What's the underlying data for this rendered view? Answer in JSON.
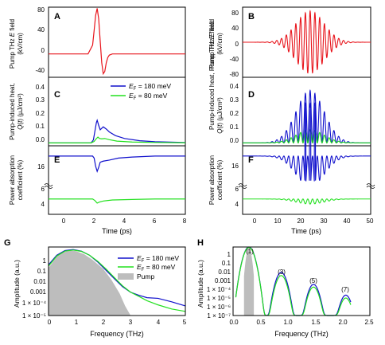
{
  "figure": {
    "pump_label": "Pump THz E field (kV/cm)",
    "heat_label": "Pump-induced heat, Q(t) (µJ/cm²)",
    "abs_label": "Power absorption coefficient (%)",
    "time_label": "Time (ps)",
    "freq_label": "Frequency (THz)",
    "amp_label": "Amplitude (a.u.)",
    "legend_180": "E_F = 180 meV",
    "legend_80": "E_F = 80 meV",
    "legend_pump": "Pump"
  },
  "colors": {
    "pump": "#e8141b",
    "ef180": "#1010cc",
    "ef80": "#22e01e",
    "pump_fill": "#bdbdbd"
  },
  "chart_data": [
    {
      "panel": "A",
      "type": "line",
      "ylabel": "Pump THz E field (kV/cm)",
      "xlim": [
        -1,
        8
      ],
      "ylim": [
        -40,
        80
      ],
      "x_ticks": [],
      "y_ticks": [
        "80",
        "40",
        "0",
        "-40"
      ],
      "series": [
        {
          "color": "#e8141b",
          "x": [
            -1,
            1.6,
            1.9,
            2.0,
            2.1,
            2.2,
            2.3,
            2.4,
            2.5,
            2.6,
            2.7,
            2.8,
            2.9,
            3.0,
            3.2,
            3.6,
            8
          ],
          "y": [
            0,
            0,
            15,
            40,
            66,
            78,
            60,
            22,
            -15,
            -34,
            -30,
            -15,
            -6,
            -2,
            0,
            0,
            0
          ]
        }
      ]
    },
    {
      "panel": "B",
      "type": "line",
      "ylabel": "Pump THz E field (kV/cm)",
      "xlim": [
        -5,
        50
      ],
      "ylim": [
        -90,
        90
      ],
      "x_ticks": [],
      "y_ticks": [
        "80",
        "40",
        "0",
        "-40",
        "-80"
      ],
      "series": [
        {
          "color": "#e8141b",
          "model": "gaussian-burst",
          "amplitude": 80,
          "center": 24,
          "width": 8.5,
          "period": 2.05,
          "x_range": [
            -5,
            50
          ]
        }
      ]
    },
    {
      "panel": "C",
      "type": "line",
      "ylabel": "Pump-induced heat, Q(t) (µJ/cm²)",
      "xlim": [
        -1,
        8
      ],
      "ylim": [
        -0.02,
        0.45
      ],
      "x_ticks": [],
      "y_ticks": [
        "0.4",
        "0.3",
        "0.2",
        "0.1",
        "0.0"
      ],
      "series": [
        {
          "name": "E_F = 180 meV",
          "color": "#1010cc",
          "x": [
            -1,
            1.8,
            1.95,
            2.05,
            2.15,
            2.2,
            2.3,
            2.4,
            2.5,
            2.6,
            2.8,
            3.0,
            3.4,
            4.0,
            5.0,
            6.0,
            8.0
          ],
          "y": [
            0,
            0,
            0.02,
            0.08,
            0.14,
            0.155,
            0.12,
            0.09,
            0.1,
            0.11,
            0.095,
            0.075,
            0.05,
            0.03,
            0.015,
            0.008,
            0.003
          ]
        },
        {
          "name": "E_F = 80 meV",
          "color": "#22e01e",
          "x": [
            -1,
            1.8,
            2.0,
            2.15,
            2.25,
            2.35,
            2.5,
            2.7,
            3.0,
            3.5,
            4.5,
            6.0,
            8.0
          ],
          "y": [
            0,
            0,
            0.01,
            0.03,
            0.04,
            0.03,
            0.028,
            0.03,
            0.022,
            0.012,
            0.006,
            0.003,
            0.001
          ]
        }
      ]
    },
    {
      "panel": "D",
      "type": "line",
      "ylabel": "Pump-induced heat, Q(t) (µJ/cm²)",
      "xlim": [
        -5,
        50
      ],
      "ylim": [
        -0.02,
        0.45
      ],
      "x_ticks": [],
      "y_ticks": [
        "0.4",
        "0.3",
        "0.2",
        "0.1",
        "0.0"
      ],
      "series": [
        {
          "name": "E_F = 180 meV",
          "color": "#1010cc",
          "model": "rectified-burst",
          "peak": 0.36,
          "center": 24,
          "width": 8.5,
          "period": 1.025,
          "x_range": [
            -5,
            50
          ]
        },
        {
          "name": "E_F = 80 meV",
          "color": "#22e01e",
          "model": "rectified-burst",
          "peak": 0.09,
          "center": 24,
          "width": 8.5,
          "period": 1.025,
          "x_range": [
            -5,
            50
          ]
        }
      ]
    },
    {
      "panel": "E",
      "type": "line",
      "ylabel": "Power absorption coefficient (%)",
      "xlim": [
        -1,
        8
      ],
      "ylim": [
        3,
        17.5
      ],
      "axis_break_between": [
        5,
        14
      ],
      "xlabel": "Time (ps)",
      "x_ticks": [
        "0",
        "2",
        "4",
        "6",
        "8"
      ],
      "y_ticks": [
        "16",
        "6",
        "4"
      ],
      "series": [
        {
          "name": "E_F = 180 meV",
          "color": "#1010cc",
          "x": [
            -1,
            1.9,
            2.0,
            2.1,
            2.2,
            2.3,
            2.4,
            2.6,
            3.0,
            3.6,
            4.5,
            6.0,
            8.0
          ],
          "y": [
            16.5,
            16.5,
            16.3,
            15.5,
            15.0,
            15.4,
            15.9,
            16.0,
            16.1,
            16.3,
            16.4,
            16.5,
            16.5
          ]
        },
        {
          "name": "E_F = 80 meV",
          "color": "#22e01e",
          "x": [
            -1,
            1.9,
            2.05,
            2.2,
            2.35,
            2.6,
            3.2,
            4.5,
            6.0,
            8.0
          ],
          "y": [
            4.5,
            4.5,
            4.35,
            4.1,
            4.2,
            4.3,
            4.4,
            4.45,
            4.5,
            4.5
          ]
        }
      ]
    },
    {
      "panel": "F",
      "type": "line",
      "ylabel": "Power absorption coefficient (%)",
      "xlim": [
        -5,
        50
      ],
      "ylim": [
        3,
        17.5
      ],
      "axis_break_between": [
        5,
        14
      ],
      "xlabel": "Time (ps)",
      "x_ticks": [
        "0",
        "10",
        "20",
        "30",
        "40",
        "50"
      ],
      "y_ticks": [
        "16",
        "6",
        "4"
      ],
      "series": [
        {
          "name": "E_F = 180 meV",
          "color": "#1010cc",
          "model": "dip-burst",
          "base": 16.5,
          "depth": 3.0,
          "center": 24,
          "width": 8.5,
          "period": 2.05,
          "x_range": [
            -5,
            50
          ]
        },
        {
          "name": "E_F = 80 meV",
          "color": "#22e01e",
          "model": "dip-burst",
          "base": 4.5,
          "depth": 0.5,
          "center": 24,
          "width": 8.5,
          "period": 2.05,
          "x_range": [
            -5,
            50
          ]
        }
      ]
    },
    {
      "panel": "G",
      "type": "line",
      "yscale": "log",
      "xlabel": "Frequency (THz)",
      "ylabel": "Amplitude (a.u.)",
      "xlim": [
        0,
        5
      ],
      "ylim": [
        1e-05,
        1
      ],
      "x_ticks": [
        "0",
        "1",
        "2",
        "3",
        "4",
        "5"
      ],
      "y_ticks": [
        "1",
        "0.1",
        "0.01",
        "0.001",
        "1 × 10⁻⁴",
        "1 × 10⁻⁵"
      ],
      "legend": "top-right",
      "series": [
        {
          "name": "Pump",
          "color": "#bdbdbd",
          "filled": true,
          "x": [
            0,
            0.3,
            0.6,
            0.8,
            1.0,
            1.3,
            1.6,
            2.0,
            2.3,
            2.6,
            2.8,
            3.0
          ],
          "y": [
            0.03,
            0.2,
            0.45,
            0.55,
            0.5,
            0.3,
            0.12,
            0.025,
            0.004,
            0.0004,
            5e-05,
            1e-05
          ]
        },
        {
          "name": "E_F = 180 meV",
          "color": "#1010cc",
          "x": [
            0,
            0.3,
            0.6,
            0.9,
            1.2,
            1.5,
            1.8,
            2.1,
            2.4,
            2.7,
            3.0,
            3.3,
            3.6,
            4.0,
            4.5,
            5.0
          ],
          "y": [
            0.05,
            0.25,
            0.55,
            0.65,
            0.5,
            0.25,
            0.08,
            0.02,
            0.005,
            0.0013,
            0.0005,
            0.0003,
            0.0002,
            0.00018,
            0.0001,
            5e-05
          ]
        },
        {
          "name": "E_F = 80 meV",
          "color": "#22e01e",
          "x": [
            0,
            0.3,
            0.6,
            0.9,
            1.2,
            1.5,
            1.8,
            2.1,
            2.4,
            2.7,
            3.0,
            3.3,
            3.6,
            4.0,
            4.5,
            5.0
          ],
          "y": [
            0.04,
            0.22,
            0.5,
            0.6,
            0.48,
            0.25,
            0.09,
            0.025,
            0.006,
            0.0015,
            0.0005,
            0.00025,
            0.00012,
            6e-05,
            3e-05,
            2e-05
          ]
        }
      ]
    },
    {
      "panel": "H",
      "type": "line",
      "yscale": "log",
      "xlabel": "Frequency (THz)",
      "ylabel": "Amplitude (a.u.)",
      "xlim": [
        0,
        2.5
      ],
      "ylim": [
        1e-07,
        1
      ],
      "x_ticks": [
        "0.0",
        "0.5",
        "1.0",
        "1.5",
        "2.0",
        "2.5"
      ],
      "y_ticks": [
        "1",
        "0.1",
        "0.01",
        "0.001",
        "1 × 10⁻⁴",
        "1 × 10⁻⁵",
        "1 × 10⁻⁶",
        "1 × 10⁻⁷"
      ],
      "annotations": [
        "(1)",
        "(3)",
        "(5)",
        "(7)"
      ],
      "peaks_x": [
        0.29,
        0.88,
        1.47,
        2.06
      ],
      "series": [
        {
          "name": "Pump",
          "color": "#bdbdbd",
          "filled": true,
          "peak_amplitudes": [
            0.8
          ]
        },
        {
          "name": "E_F = 180 meV",
          "color": "#1010cc",
          "peak_amplitudes": [
            1.0,
            0.0025,
            0.00015,
            1.2e-05
          ]
        },
        {
          "name": "E_F = 80 meV",
          "color": "#22e01e",
          "peak_amplitudes": [
            0.9,
            0.0012,
            8e-05,
            6e-06
          ]
        }
      ]
    }
  ]
}
